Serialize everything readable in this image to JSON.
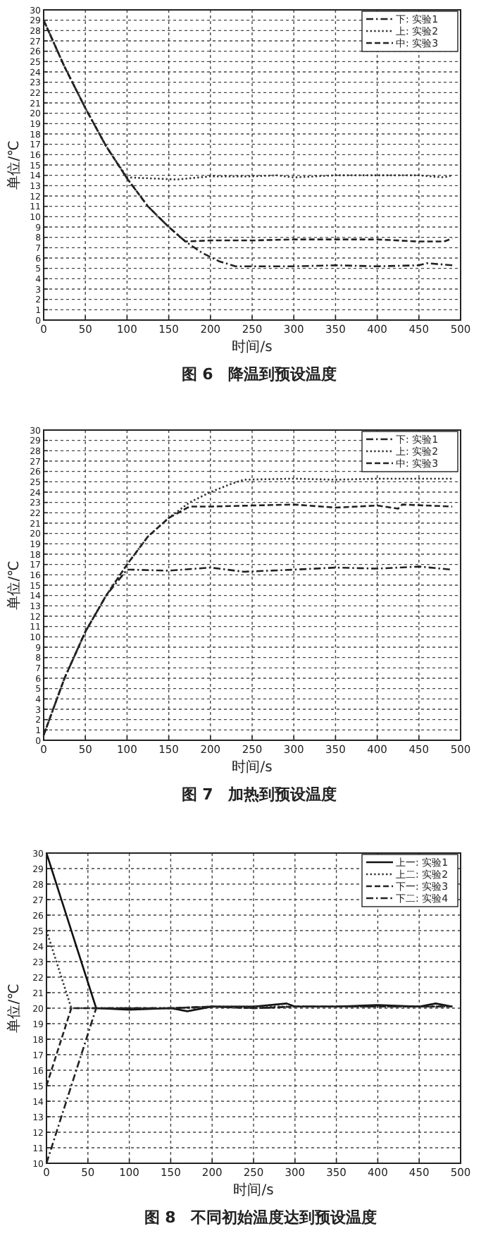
{
  "chart_data": [
    {
      "type": "line",
      "title": "图 6　降温到预设温度",
      "xlabel": "时间/s",
      "ylabel": "单位/℃",
      "xlim": [
        0,
        500
      ],
      "ylim": [
        0,
        30
      ],
      "xticks": [
        0,
        50,
        100,
        150,
        200,
        250,
        300,
        350,
        400,
        450,
        500
      ],
      "yticks": [
        0,
        1,
        2,
        3,
        4,
        5,
        6,
        7,
        8,
        9,
        10,
        11,
        12,
        13,
        14,
        15,
        16,
        17,
        18,
        19,
        20,
        21,
        22,
        23,
        24,
        25,
        26,
        27,
        28,
        29,
        30
      ],
      "grid": true,
      "legend": "top right",
      "series": [
        {
          "name": "下: 实验1",
          "color": "#222222",
          "line_style": "dashdot",
          "x": [
            0,
            25,
            50,
            75,
            100,
            125,
            150,
            170,
            190,
            210,
            230,
            260,
            300,
            350,
            400,
            450,
            460,
            490
          ],
          "values": [
            29,
            24.5,
            20.5,
            16.8,
            13.7,
            11,
            9,
            7.6,
            6.5,
            5.7,
            5.2,
            5.2,
            5.2,
            5.3,
            5.2,
            5.3,
            5.5,
            5.3
          ]
        },
        {
          "name": "上: 实验2",
          "color": "#333333",
          "line_style": "dotted",
          "x": [
            0,
            25,
            50,
            75,
            100,
            130,
            160,
            200,
            250,
            280,
            300,
            350,
            400,
            450,
            480,
            490
          ],
          "values": [
            29,
            24.5,
            20.5,
            16.8,
            13.8,
            13.7,
            13.6,
            13.9,
            13.9,
            14,
            13.8,
            14,
            14,
            14,
            13.8,
            14
          ]
        },
        {
          "name": "中: 实验3",
          "color": "#222222",
          "line_style": "dashed",
          "x": [
            0,
            25,
            50,
            75,
            100,
            125,
            150,
            170,
            200,
            250,
            300,
            350,
            400,
            450,
            480,
            490
          ],
          "values": [
            29,
            24.5,
            20.5,
            16.8,
            13.7,
            11,
            9,
            7.6,
            7.7,
            7.7,
            7.8,
            7.8,
            7.8,
            7.6,
            7.6,
            7.9
          ]
        }
      ]
    },
    {
      "type": "line",
      "title": "图 7　加热到预设温度",
      "xlabel": "时间/s",
      "ylabel": "单位/℃",
      "xlim": [
        0,
        500
      ],
      "ylim": [
        0,
        30
      ],
      "xticks": [
        0,
        50,
        100,
        150,
        200,
        250,
        300,
        350,
        400,
        450,
        500
      ],
      "yticks": [
        0,
        1,
        2,
        3,
        4,
        5,
        6,
        7,
        8,
        9,
        10,
        11,
        12,
        13,
        14,
        15,
        16,
        17,
        18,
        19,
        20,
        21,
        22,
        23,
        24,
        25,
        26,
        27,
        28,
        29,
        30
      ],
      "grid": true,
      "legend": "top right",
      "series": [
        {
          "name": "下: 实验1",
          "color": "#222222",
          "line_style": "dashdot",
          "x": [
            0,
            25,
            50,
            75,
            100,
            105,
            150,
            200,
            240,
            300,
            350,
            400,
            450,
            490
          ],
          "values": [
            0.5,
            6,
            10.5,
            14,
            16.5,
            16.5,
            16.4,
            16.7,
            16.3,
            16.5,
            16.7,
            16.6,
            16.8,
            16.5
          ]
        },
        {
          "name": "上: 实验2",
          "color": "#333333",
          "line_style": "dotted",
          "x": [
            0,
            25,
            50,
            75,
            100,
            125,
            150,
            175,
            200,
            225,
            240,
            300,
            350,
            400,
            450,
            490
          ],
          "values": [
            0.5,
            6,
            10.5,
            14,
            17,
            19.7,
            21.5,
            23,
            24,
            24.8,
            25.2,
            25.3,
            25.2,
            25.3,
            25.3,
            25.3
          ]
        },
        {
          "name": "中: 实验3",
          "color": "#222222",
          "line_style": "dashed",
          "x": [
            0,
            25,
            50,
            75,
            100,
            125,
            150,
            175,
            200,
            250,
            300,
            350,
            400,
            425,
            430,
            490
          ],
          "values": [
            0.5,
            6,
            10.5,
            14,
            17,
            19.7,
            21.5,
            22.6,
            22.6,
            22.7,
            22.8,
            22.5,
            22.7,
            22.4,
            22.8,
            22.6
          ]
        }
      ]
    },
    {
      "type": "line",
      "title": "图 8　不同初始温度达到预设温度",
      "xlabel": "时间/s",
      "ylabel": "单位/℃",
      "xlim": [
        0,
        500
      ],
      "ylim": [
        10,
        30
      ],
      "xticks": [
        0,
        50,
        100,
        150,
        200,
        250,
        300,
        350,
        400,
        450,
        500
      ],
      "yticks": [
        10,
        11,
        12,
        13,
        14,
        15,
        16,
        17,
        18,
        19,
        20,
        21,
        22,
        23,
        24,
        25,
        26,
        27,
        28,
        29,
        30
      ],
      "grid": true,
      "legend": "top right",
      "series": [
        {
          "name": "上一: 实验1",
          "color": "#111111",
          "line_style": "solid",
          "x": [
            0,
            60,
            100,
            150,
            170,
            200,
            250,
            290,
            300,
            350,
            400,
            450,
            470,
            490
          ],
          "values": [
            30,
            20,
            19.9,
            20,
            19.8,
            20.1,
            20.1,
            20.3,
            20.1,
            20.1,
            20.2,
            20.1,
            20.3,
            20.1
          ]
        },
        {
          "name": "上二: 实验2",
          "color": "#333333",
          "line_style": "dotted",
          "x": [
            0,
            30,
            100,
            150,
            200,
            250,
            300,
            350,
            400,
            450,
            490
          ],
          "values": [
            25,
            20,
            20,
            20,
            20.1,
            20.1,
            20.1,
            20.1,
            20.1,
            20.1,
            20.1
          ]
        },
        {
          "name": "下一: 实验3",
          "color": "#222222",
          "line_style": "dashed",
          "x": [
            0,
            30,
            100,
            150,
            200,
            250,
            300,
            350,
            400,
            450,
            490
          ],
          "values": [
            15,
            20,
            20,
            20,
            20.1,
            20,
            20.1,
            20.1,
            20.1,
            20.1,
            20.1
          ]
        },
        {
          "name": "下二: 实验4",
          "color": "#222222",
          "line_style": "dashdot",
          "x": [
            0,
            60,
            100,
            150,
            200,
            250,
            300,
            350,
            400,
            450,
            490
          ],
          "values": [
            10,
            20,
            20,
            20,
            20.1,
            20,
            20.1,
            20.1,
            20.1,
            20.1,
            20.1
          ]
        }
      ]
    }
  ]
}
